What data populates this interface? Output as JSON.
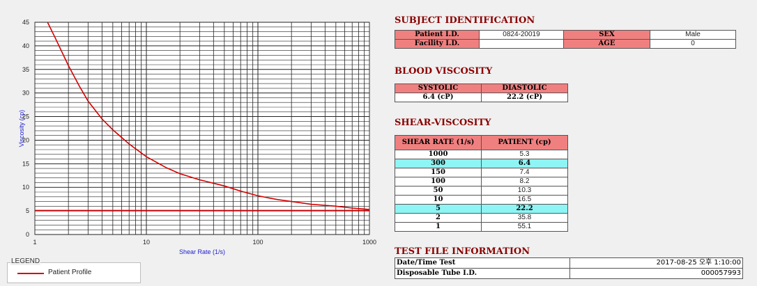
{
  "chart_data": {
    "type": "line",
    "xlabel": "Shear Rate (1/s)",
    "ylabel": "Viscosity (cp)",
    "xscale": "log",
    "xlim": [
      1,
      1000
    ],
    "ylim": [
      0,
      45
    ],
    "grid": true,
    "x_tick_labels": [
      "1",
      "10",
      "100",
      "1000"
    ],
    "y_tick_labels": [
      "0",
      "5",
      "10",
      "15",
      "20",
      "25",
      "30",
      "35",
      "40",
      "45"
    ],
    "series": [
      {
        "name": "Patient Profile",
        "color": "#d40000",
        "x": [
          1.3,
          1.5,
          2,
          2.5,
          3,
          4,
          5,
          7,
          10,
          15,
          20,
          30,
          50,
          70,
          100,
          150,
          200,
          300,
          500,
          700,
          1000
        ],
        "y": [
          45,
          42,
          35.8,
          31.5,
          28.3,
          24.5,
          22.2,
          19.2,
          16.5,
          14.2,
          12.9,
          11.6,
          10.3,
          9.2,
          8.2,
          7.4,
          7.0,
          6.4,
          6.0,
          5.6,
          5.3
        ]
      },
      {
        "name": "",
        "color": "#d40000",
        "x": [
          1,
          1000
        ],
        "y": [
          5.1,
          5.1
        ]
      }
    ]
  },
  "legend": {
    "title": "LEGEND",
    "label": "Patient Profile"
  },
  "subject": {
    "title": "SUBJECT IDENTIFICATION",
    "patient_id_label": "Patient I.D.",
    "patient_id": "0824-20019",
    "sex_label": "SEX",
    "sex": "Male",
    "facility_id_label": "Facility I.D.",
    "facility_id": "",
    "age_label": "AGE",
    "age": "0"
  },
  "blood_viscosity": {
    "title": "BLOOD VISCOSITY",
    "systolic_label": "SYSTOLIC",
    "diastolic_label": "DIASTOLIC",
    "systolic": "6.4 (cP)",
    "diastolic": "22.2 (cP)"
  },
  "shear_viscosity": {
    "title": "SHEAR-VISCOSITY",
    "col_rate": "SHEAR RATE (1/s)",
    "col_patient": "PATIENT (cp)",
    "highlight_color": "#8ef4f4",
    "rows": [
      {
        "rate": "1000",
        "value": "5.3",
        "highlight": false
      },
      {
        "rate": "300",
        "value": "6.4",
        "highlight": true
      },
      {
        "rate": "150",
        "value": "7.4",
        "highlight": false
      },
      {
        "rate": "100",
        "value": "8.2",
        "highlight": false
      },
      {
        "rate": "50",
        "value": "10.3",
        "highlight": false
      },
      {
        "rate": "10",
        "value": "16.5",
        "highlight": false
      },
      {
        "rate": "5",
        "value": "22.2",
        "highlight": true
      },
      {
        "rate": "2",
        "value": "35.8",
        "highlight": false
      },
      {
        "rate": "1",
        "value": "55.1",
        "highlight": false
      }
    ]
  },
  "test_file": {
    "title": "TEST FILE INFORMATION",
    "datetime_label": "Date/Time Test",
    "datetime": "2017-08-25  오후 1:10:00",
    "tube_label": "Disposable Tube I.D.",
    "tube": "000057993"
  }
}
